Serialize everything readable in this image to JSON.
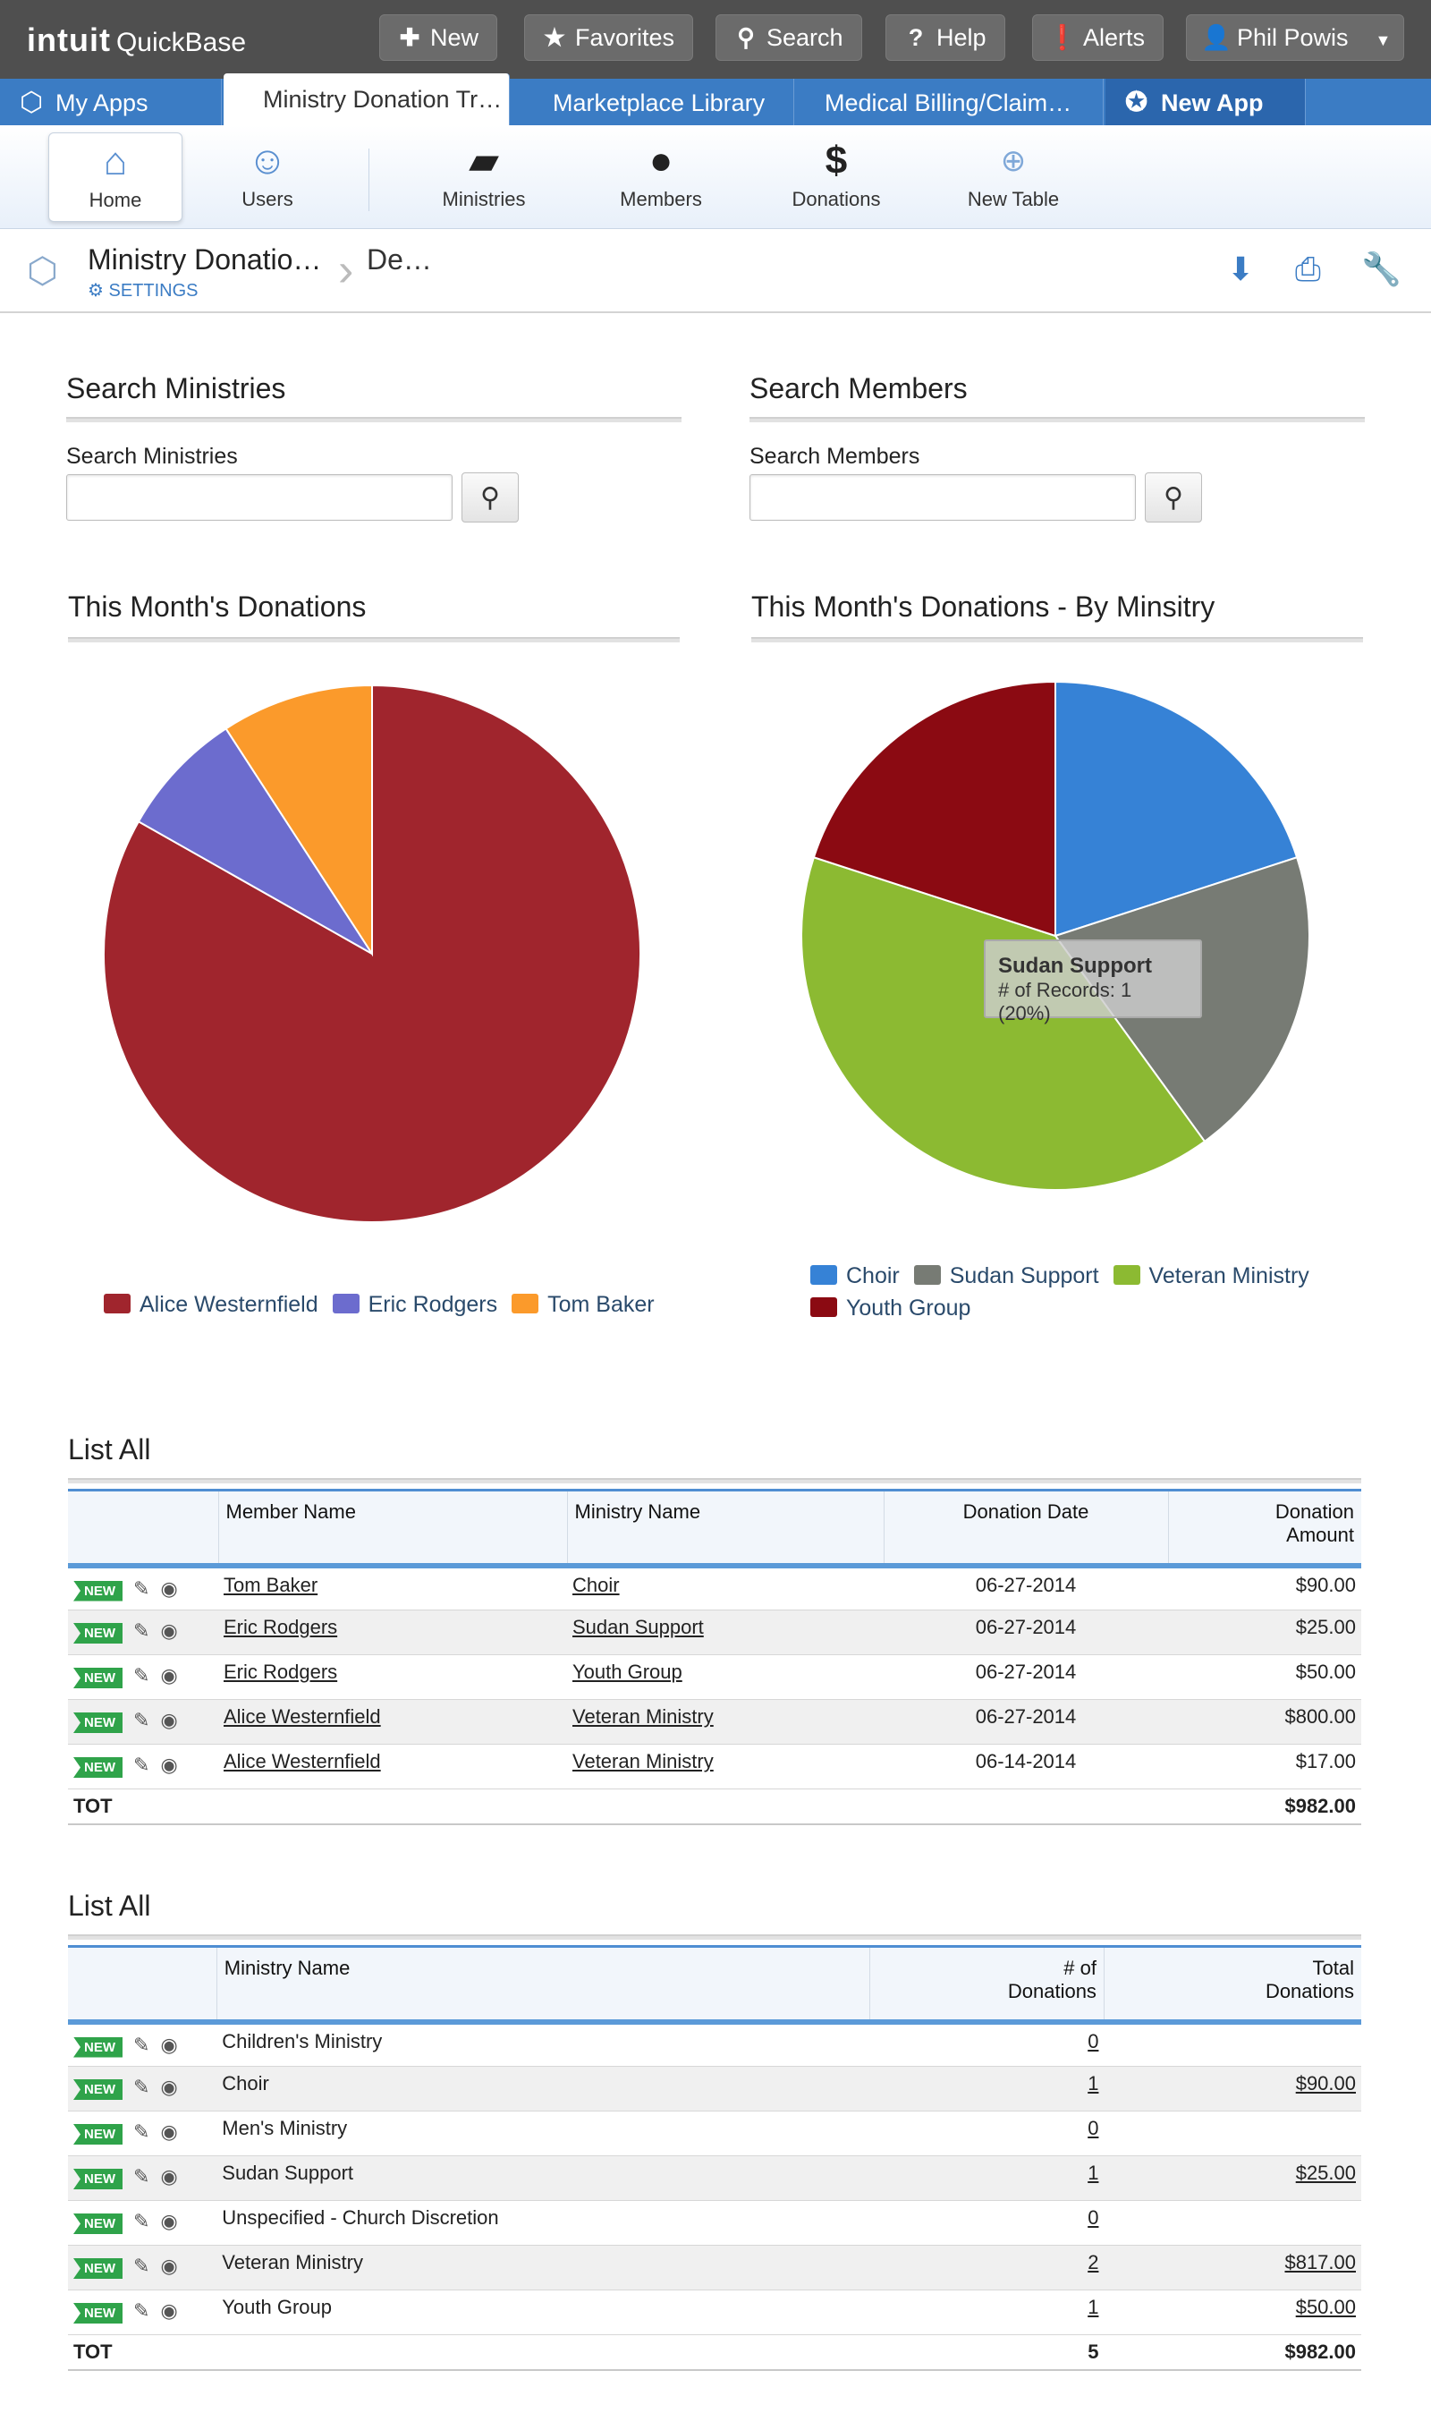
{
  "topbar": {
    "logo_brand": "intuit",
    "logo_product": "QuickBase",
    "buttons": [
      {
        "label": "New",
        "icon": "plus-icon"
      },
      {
        "label": "Favorites",
        "icon": "star-icon"
      },
      {
        "label": "Search",
        "icon": "search-icon"
      },
      {
        "label": "Help",
        "icon": "question-icon"
      },
      {
        "label": "Alerts",
        "icon": "alert-icon"
      }
    ],
    "user": "Phil Powis"
  },
  "tabs": [
    {
      "label": "My Apps"
    },
    {
      "label": "Ministry Donation Tr…"
    },
    {
      "label": "Marketplace Library"
    },
    {
      "label": "Medical Billing/Claim…"
    },
    {
      "label": "New App"
    }
  ],
  "tablenav": [
    {
      "label": "Home",
      "icon": "home-icon"
    },
    {
      "label": "Users",
      "icon": "user-icon"
    },
    {
      "label": "Ministries",
      "icon": "folder-icon"
    },
    {
      "label": "Members",
      "icon": "person-icon"
    },
    {
      "label": "Donations",
      "icon": "dollar-icon"
    },
    {
      "label": "New Table",
      "icon": "new-table-icon"
    }
  ],
  "breadcrumb": {
    "app": "Ministry Donatio…",
    "settings": "SETTINGS",
    "page": "De…"
  },
  "search_ministries": {
    "title": "Search Ministries",
    "label": "Search Ministries",
    "value": ""
  },
  "search_members": {
    "title": "Search Members",
    "label": "Search Members",
    "value": ""
  },
  "chart1": {
    "title": "This Month's Donations"
  },
  "chart2": {
    "title": "This Month's Donations - By Minsitry"
  },
  "chart_data": [
    {
      "type": "pie",
      "title": "This Month's Donations",
      "labels": [
        "Alice Westernfield",
        "Eric Rodgers",
        "Tom Baker"
      ],
      "values": [
        817,
        75,
        90
      ],
      "colors": [
        "#a0252d",
        "#6c6cce",
        "#fb9a2b"
      ],
      "legend": "bottom"
    },
    {
      "type": "pie",
      "title": "This Month's Donations - By Minsitry",
      "labels": [
        "Choir",
        "Sudan Support",
        "Veteran Ministry",
        "Youth Group"
      ],
      "values": [
        1,
        1,
        2,
        1
      ],
      "colors": [
        "#3682d6",
        "#777b74",
        "#8cba32",
        "#8b0a12"
      ],
      "legend": "bottom",
      "tooltip": {
        "title": "Sudan Support",
        "text": "# of Records: 1 (20%)"
      }
    }
  ],
  "table1": {
    "title": "List All",
    "badge": "NEW",
    "headers": [
      "Member Name",
      "Ministry Name",
      "Donation Date",
      "Donation Amount"
    ],
    "rows": [
      [
        "Tom Baker",
        "Choir",
        "06-27-2014",
        "$90.00"
      ],
      [
        "Eric Rodgers",
        "Sudan Support",
        "06-27-2014",
        "$25.00"
      ],
      [
        "Eric Rodgers",
        "Youth Group",
        "06-27-2014",
        "$50.00"
      ],
      [
        "Alice Westernfield",
        "Veteran Ministry",
        "06-27-2014",
        "$800.00"
      ],
      [
        "Alice Westernfield",
        "Veteran Ministry",
        "06-14-2014",
        "$17.00"
      ]
    ],
    "total_label": "TOT",
    "total_amount": "$982.00"
  },
  "table2": {
    "title": "List All",
    "badge": "NEW",
    "headers": [
      "Ministry Name",
      "# of Donations",
      "Total Donations"
    ],
    "rows": [
      [
        "Children's Ministry",
        "0",
        ""
      ],
      [
        "Choir",
        "1",
        "$90.00"
      ],
      [
        "Men's Ministry",
        "0",
        ""
      ],
      [
        "Sudan Support",
        "1",
        "$25.00"
      ],
      [
        "Unspecified - Church Discretion",
        "0",
        ""
      ],
      [
        "Veteran Ministry",
        "2",
        "$817.00"
      ],
      [
        "Youth Group",
        "1",
        "$50.00"
      ]
    ],
    "total_label": "TOT",
    "total_count": "5",
    "total_amount": "$982.00"
  }
}
